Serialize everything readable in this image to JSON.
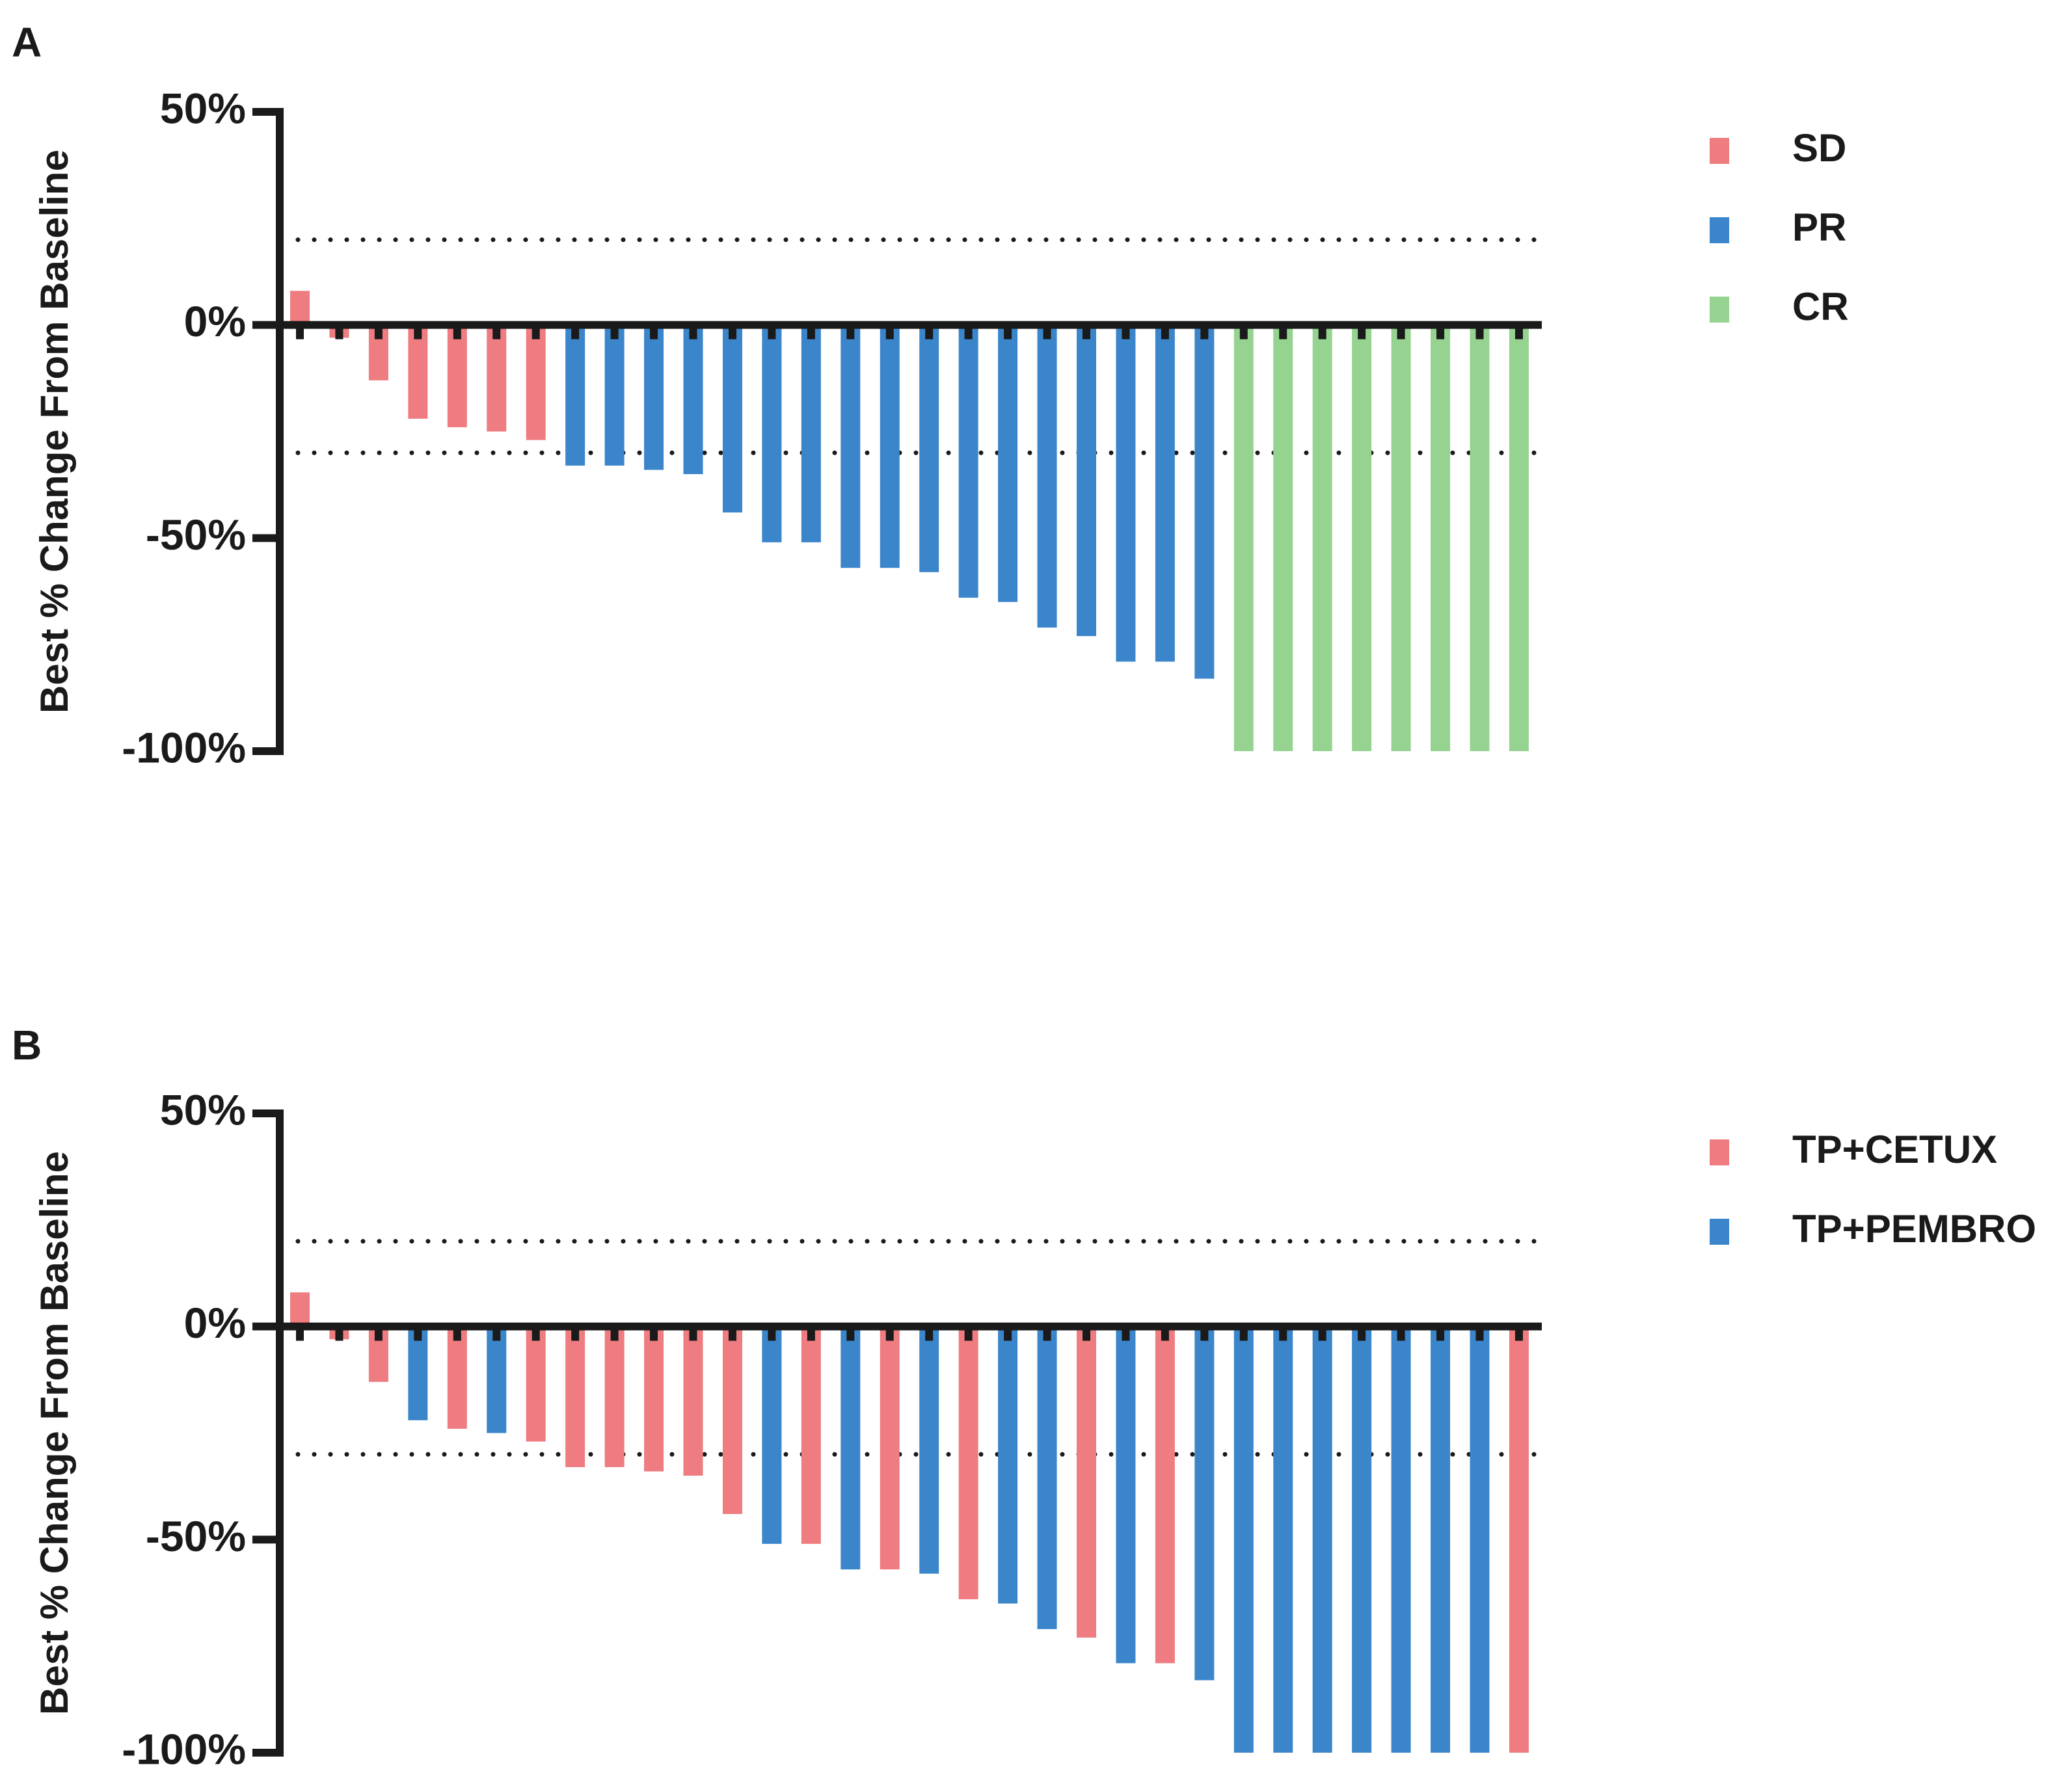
{
  "colors": {
    "red": "#EE7C80",
    "blue": "#3B85CB",
    "green": "#96D391",
    "axis": "#1a1a1a"
  },
  "chart_data": [
    {
      "panel_label": "A",
      "type": "bar",
      "ylabel": "Best % Change From Baseline",
      "ylim": [
        -100,
        50
      ],
      "yticks": [
        50,
        0,
        -50,
        -100
      ],
      "ytick_labels": [
        "50%",
        "0%",
        "-50%",
        "-100%"
      ],
      "reference_lines": [
        20,
        -30
      ],
      "legend_position": "top-right",
      "legend": [
        {
          "label": "SD",
          "color": "#EE7C80"
        },
        {
          "label": "PR",
          "color": "#3B85CB"
        },
        {
          "label": "CR",
          "color": "#96D391"
        }
      ],
      "values": [
        8,
        -3,
        -13,
        -22,
        -24,
        -25,
        -27,
        -33,
        -33,
        -34,
        -35,
        -44,
        -51,
        -51,
        -57,
        -57,
        -58,
        -64,
        -65,
        -71,
        -73,
        -79,
        -79,
        -83,
        -100,
        -100,
        -100,
        -100,
        -100,
        -100,
        -100,
        -100
      ],
      "groups": [
        "SD",
        "SD",
        "SD",
        "SD",
        "SD",
        "SD",
        "SD",
        "PR",
        "PR",
        "PR",
        "PR",
        "PR",
        "PR",
        "PR",
        "PR",
        "PR",
        "PR",
        "PR",
        "PR",
        "PR",
        "PR",
        "PR",
        "PR",
        "PR",
        "CR",
        "CR",
        "CR",
        "CR",
        "CR",
        "CR",
        "CR",
        "CR"
      ]
    },
    {
      "panel_label": "B",
      "type": "bar",
      "ylabel": "Best % Change From Baseline",
      "ylim": [
        -100,
        50
      ],
      "yticks": [
        50,
        0,
        -50,
        -100
      ],
      "ytick_labels": [
        "50%",
        "0%",
        "-50%",
        "-100%"
      ],
      "reference_lines": [
        20,
        -30
      ],
      "legend_position": "top-right",
      "legend": [
        {
          "label": "TP+CETUX",
          "color": "#EE7C80"
        },
        {
          "label": "TP+PEMBRO",
          "color": "#3B85CB"
        }
      ],
      "values": [
        8,
        -3,
        -13,
        -22,
        -24,
        -25,
        -27,
        -33,
        -33,
        -34,
        -35,
        -44,
        -51,
        -51,
        -57,
        -57,
        -58,
        -64,
        -65,
        -71,
        -73,
        -79,
        -79,
        -83,
        -100,
        -100,
        -100,
        -100,
        -100,
        -100,
        -100,
        -100
      ],
      "groups": [
        "TP+CETUX",
        "TP+CETUX",
        "TP+CETUX",
        "TP+PEMBRO",
        "TP+CETUX",
        "TP+PEMBRO",
        "TP+CETUX",
        "TP+CETUX",
        "TP+CETUX",
        "TP+CETUX",
        "TP+CETUX",
        "TP+CETUX",
        "TP+PEMBRO",
        "TP+CETUX",
        "TP+PEMBRO",
        "TP+CETUX",
        "TP+PEMBRO",
        "TP+CETUX",
        "TP+PEMBRO",
        "TP+PEMBRO",
        "TP+CETUX",
        "TP+PEMBRO",
        "TP+CETUX",
        "TP+PEMBRO",
        "TP+PEMBRO",
        "TP+PEMBRO",
        "TP+PEMBRO",
        "TP+PEMBRO",
        "TP+PEMBRO",
        "TP+PEMBRO",
        "TP+PEMBRO",
        "TP+CETUX"
      ]
    }
  ]
}
